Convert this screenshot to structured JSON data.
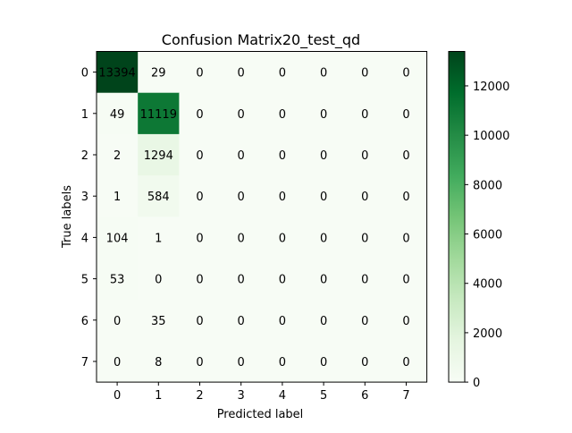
{
  "chart_data": {
    "type": "heatmap",
    "title": "Confusion Matrix20_test_qd",
    "xlabel": "Predicted label",
    "ylabel": "True labels",
    "x_categories": [
      "0",
      "1",
      "2",
      "3",
      "4",
      "5",
      "6",
      "7"
    ],
    "y_categories": [
      "0",
      "1",
      "2",
      "3",
      "4",
      "5",
      "6",
      "7"
    ],
    "matrix": [
      [
        13394,
        29,
        0,
        0,
        0,
        0,
        0,
        0
      ],
      [
        49,
        11119,
        0,
        0,
        0,
        0,
        0,
        0
      ],
      [
        2,
        1294,
        0,
        0,
        0,
        0,
        0,
        0
      ],
      [
        1,
        584,
        0,
        0,
        0,
        0,
        0,
        0
      ],
      [
        104,
        1,
        0,
        0,
        0,
        0,
        0,
        0
      ],
      [
        53,
        0,
        0,
        0,
        0,
        0,
        0,
        0
      ],
      [
        0,
        35,
        0,
        0,
        0,
        0,
        0,
        0
      ],
      [
        0,
        8,
        0,
        0,
        0,
        0,
        0,
        0
      ]
    ],
    "colormap": "Greens",
    "colors": {
      "low": "#f7fcf5",
      "high": "#00441b"
    },
    "colorbar": {
      "range": [
        0,
        13394
      ],
      "ticks": [
        0,
        2000,
        4000,
        6000,
        8000,
        10000,
        12000
      ]
    },
    "grid": false,
    "legend": "none"
  }
}
